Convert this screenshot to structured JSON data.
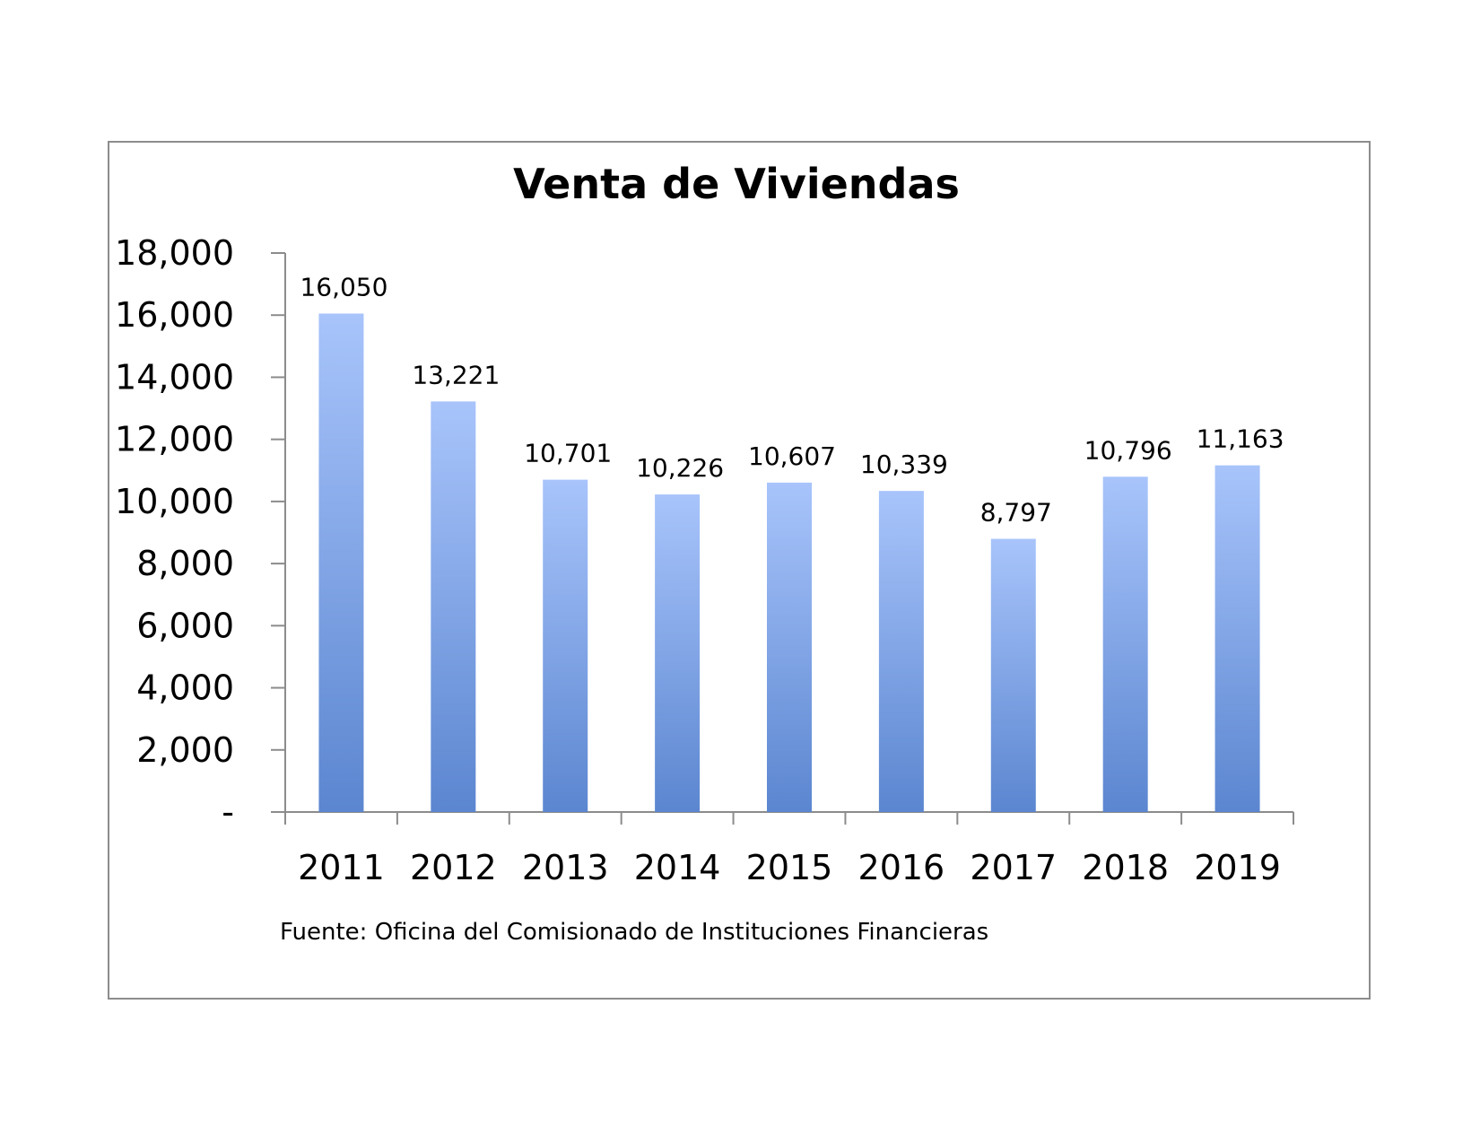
{
  "chart_data": {
    "type": "bar",
    "title": "Venta de Viviendas",
    "categories": [
      "2011",
      "2012",
      "2013",
      "2014",
      "2015",
      "2016",
      "2017",
      "2018",
      "2019"
    ],
    "values": [
      16050,
      13221,
      10701,
      10226,
      10607,
      10339,
      8797,
      10796,
      11163
    ],
    "data_labels": [
      "16,050",
      "13,221",
      "10,701",
      "10,226",
      "10,607",
      "10,339",
      "8,797",
      "10,796",
      "11,163"
    ],
    "y_ticks": [
      {
        "value": 0,
        "label": "-"
      },
      {
        "value": 2000,
        "label": "2,000"
      },
      {
        "value": 4000,
        "label": "4,000"
      },
      {
        "value": 6000,
        "label": "6,000"
      },
      {
        "value": 8000,
        "label": "8,000"
      },
      {
        "value": 10000,
        "label": "10,000"
      },
      {
        "value": 12000,
        "label": "12,000"
      },
      {
        "value": 14000,
        "label": "14,000"
      },
      {
        "value": 16000,
        "label": "16,000"
      },
      {
        "value": 18000,
        "label": "18,000"
      }
    ],
    "ylim": [
      0,
      18000
    ],
    "xlabel": "",
    "ylabel": "",
    "grid": false,
    "legend": "none",
    "source": "Fuente:  Oficina del Comisionado de Instituciones  Financieras",
    "colors": {
      "bar_top": "#a8c4fb",
      "bar_bottom": "#5b86d0",
      "axis": "#8c8c8c",
      "frame": "#8c8c8c"
    }
  }
}
